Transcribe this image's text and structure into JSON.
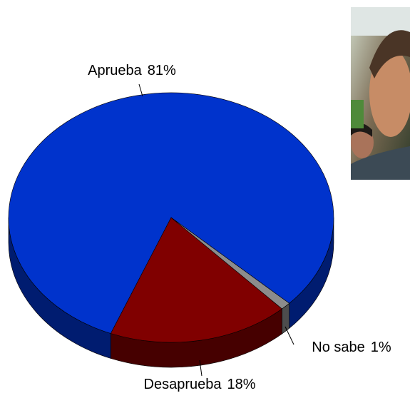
{
  "chart_data": {
    "type": "pie3d",
    "categories": [
      "Aprueba",
      "Desaprueba",
      "No sabe"
    ],
    "values": [
      81,
      18,
      1
    ],
    "value_labels": [
      "81%",
      "18%",
      "1%"
    ],
    "colors": [
      "#0033cc",
      "#800000",
      "#8c8c8c"
    ]
  }
}
